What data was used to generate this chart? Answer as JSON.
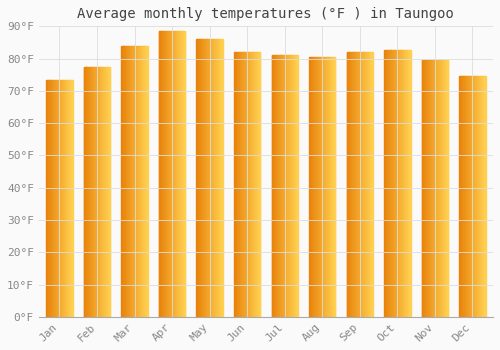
{
  "title": "Average monthly temperatures (°F ) in Taungoo",
  "months": [
    "Jan",
    "Feb",
    "Mar",
    "Apr",
    "May",
    "Jun",
    "Jul",
    "Aug",
    "Sep",
    "Oct",
    "Nov",
    "Dec"
  ],
  "values": [
    73.5,
    77.5,
    84.0,
    88.5,
    86.0,
    82.0,
    81.0,
    80.5,
    82.0,
    82.5,
    79.5,
    74.5
  ],
  "bar_color_left": "#E8820A",
  "bar_color_right": "#FFD050",
  "ylim": [
    0,
    90
  ],
  "yticks": [
    0,
    10,
    20,
    30,
    40,
    50,
    60,
    70,
    80,
    90
  ],
  "ytick_labels": [
    "0°F",
    "10°F",
    "20°F",
    "30°F",
    "40°F",
    "50°F",
    "60°F",
    "70°F",
    "80°F",
    "90°F"
  ],
  "background_color": "#fafafa",
  "grid_color": "#dddddd",
  "title_fontsize": 10,
  "tick_fontsize": 8,
  "title_font_color": "#444444",
  "tick_font_color": "#888888",
  "gradient_steps": 50
}
